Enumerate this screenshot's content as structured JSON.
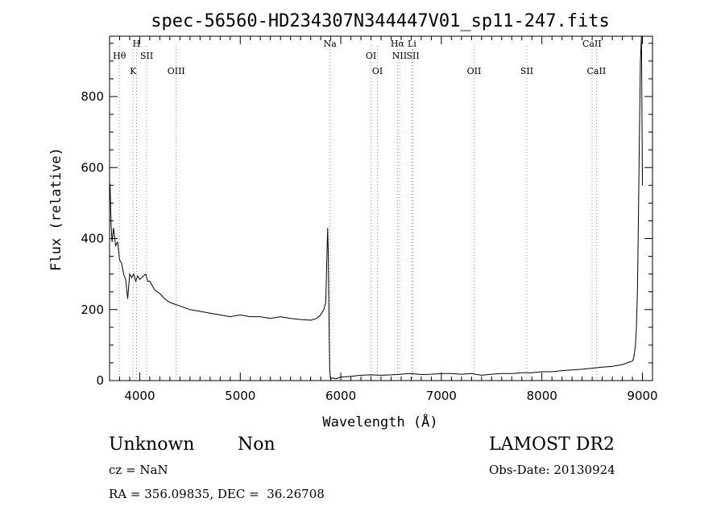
{
  "chart_data": {
    "type": "line",
    "title": "spec-56560-HD234307N344447V01_sp11-247.fits",
    "xlabel": "Wavelength (Å)",
    "ylabel": "Flux (relative)",
    "xlim": [
      3700,
      9100
    ],
    "ylim": [
      0,
      970
    ],
    "xticks": [
      4000,
      5000,
      6000,
      7000,
      8000,
      9000
    ],
    "yticks": [
      0,
      200,
      400,
      600,
      800
    ],
    "grid": false,
    "series": [
      {
        "color": "#000000",
        "x": [
          3700,
          3705,
          3715,
          3725,
          3740,
          3760,
          3780,
          3800,
          3820,
          3840,
          3860,
          3880,
          3900,
          3920,
          3940,
          3960,
          3980,
          4000,
          4020,
          4040,
          4060,
          4080,
          4100,
          4150,
          4200,
          4250,
          4300,
          4350,
          4400,
          4500,
          4600,
          4700,
          4800,
          4900,
          5000,
          5100,
          5200,
          5300,
          5400,
          5500,
          5600,
          5700,
          5760,
          5800,
          5830,
          5850,
          5860,
          5870,
          5875,
          5880,
          5885,
          5890,
          5895,
          5900,
          5920,
          5950,
          6000,
          6100,
          6200,
          6300,
          6400,
          6500,
          6600,
          6700,
          6800,
          6900,
          7000,
          7100,
          7200,
          7300,
          7400,
          7500,
          7600,
          7700,
          7800,
          7900,
          8000,
          8100,
          8200,
          8300,
          8400,
          8500,
          8600,
          8700,
          8800,
          8850,
          8900,
          8910,
          8920,
          8930,
          8940,
          8950,
          8960,
          8970,
          8980,
          8990,
          9000
        ],
        "y": [
          510,
          555,
          440,
          390,
          430,
          380,
          390,
          340,
          330,
          300,
          285,
          230,
          300,
          290,
          300,
          280,
          295,
          285,
          290,
          295,
          300,
          280,
          280,
          255,
          245,
          230,
          220,
          215,
          210,
          200,
          195,
          190,
          185,
          180,
          185,
          180,
          180,
          175,
          180,
          175,
          172,
          170,
          175,
          185,
          200,
          220,
          330,
          430,
          360,
          240,
          120,
          30,
          12,
          5,
          8,
          5,
          10,
          12,
          15,
          16,
          15,
          16,
          18,
          20,
          17,
          18,
          20,
          20,
          18,
          20,
          15,
          18,
          20,
          20,
          22,
          22,
          25,
          25,
          28,
          30,
          32,
          35,
          38,
          40,
          45,
          50,
          55,
          60,
          75,
          100,
          150,
          250,
          450,
          700,
          900,
          970,
          550
        ]
      }
    ],
    "lines": [
      {
        "label": "Hθ",
        "x": 3798
      },
      {
        "label": "K",
        "x": 3934
      },
      {
        "label": "H",
        "x": 3968
      },
      {
        "label": "SII",
        "x": 4069
      },
      {
        "label": "OIII",
        "x": 4363
      },
      {
        "label": "Na",
        "x": 5893
      },
      {
        "label": "OI",
        "x": 6300
      },
      {
        "label": "OI",
        "x": 6364
      },
      {
        "label": "Hα",
        "x": 6563
      },
      {
        "label": "NII",
        "x": 6584
      },
      {
        "label": "Li",
        "x": 6708
      },
      {
        "label": "SII",
        "x": 6717
      },
      {
        "label": "OII",
        "x": 7325
      },
      {
        "label": "SII",
        "x": 7850
      },
      {
        "label": "CaII",
        "x": 8498
      },
      {
        "label": "CaII",
        "x": 8542
      }
    ]
  },
  "info": {
    "class": "Unknown",
    "subclass": "Non",
    "survey": "LAMOST DR2",
    "cz": "cz = NaN",
    "obs_date": "Obs-Date: 20130924",
    "coords": "RA = 356.09835, DEC =  36.26708"
  }
}
